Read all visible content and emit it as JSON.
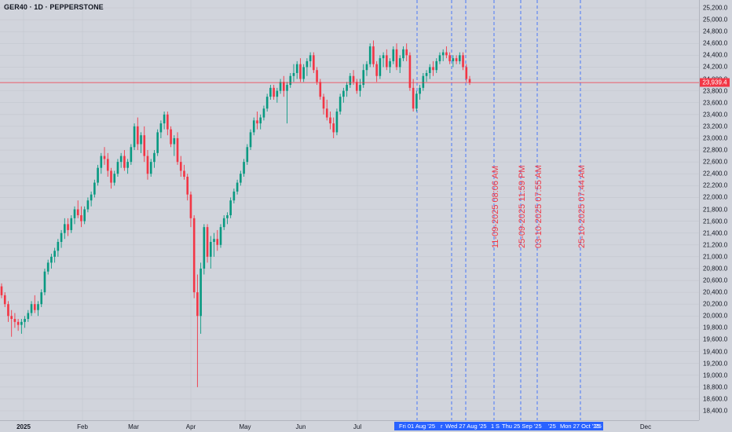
{
  "header": {
    "title": "GER40 · 1D · PEPPERSTONE"
  },
  "price_axis": {
    "labels": [
      "25,200.0",
      "25,000.0",
      "24,800.0",
      "24,600.0",
      "24,400.0",
      "24,200.0",
      "24,000.0",
      "23,800.0",
      "23,600.0",
      "23,400.0",
      "23,200.0",
      "23,000.0",
      "22,800.0",
      "22,600.0",
      "22,400.0",
      "22,200.0",
      "22,000.0",
      "21,800.0",
      "21,600.0",
      "21,400.0",
      "21,200.0",
      "21,000.0",
      "20,800.0",
      "20,600.0",
      "20,400.0",
      "20,200.0",
      "20,000.0",
      "19,800.0",
      "19,600.0",
      "19,400.0",
      "19,200.0",
      "19,000.0",
      "18,800.0",
      "18,600.0",
      "18,400.0"
    ],
    "current_price_label": "23,939.4",
    "current_price": 23939.4
  },
  "time_axis": {
    "labels": [
      "2025",
      "Feb",
      "Mar",
      "Apr",
      "May",
      "Jun",
      "Jul",
      "Dec"
    ],
    "selection_labels": [
      "Fri 01 Aug '25",
      "r",
      "Wed 27 Aug '25",
      "1",
      "S",
      "Thu 25 Sep '25",
      "'25",
      "Mon 27 Oct '25",
      "'25"
    ]
  },
  "vertical_lines": {
    "labels": [
      "11-09-2025 08:06 AM",
      "25-09-2025 11:59 PM",
      "03-10-2025 07:55 AM",
      "25-10-2025 07:44 AM"
    ]
  },
  "colors": {
    "up": "#089981",
    "down": "#f23645",
    "background": "#d1d4dc",
    "grid": "#c3c6ce",
    "vline": "#2962ff",
    "axis_text": "#131722"
  },
  "chart_data": {
    "type": "candlestick",
    "title": "GER40 · 1D · PEPPERSTONE",
    "ylim": [
      18300,
      25300
    ],
    "current_price": 23939.4,
    "ohlc": [
      [
        20500,
        20550,
        20300,
        20350
      ],
      [
        20350,
        20400,
        20150,
        20200
      ],
      [
        20200,
        20250,
        19900,
        20000
      ],
      [
        20000,
        20100,
        19650,
        19950
      ],
      [
        19950,
        20050,
        19800,
        19900
      ],
      [
        19900,
        19950,
        19750,
        19850
      ],
      [
        19850,
        19950,
        19700,
        19900
      ],
      [
        19900,
        20000,
        19800,
        19950
      ],
      [
        19950,
        20100,
        19900,
        20050
      ],
      [
        20050,
        20250,
        20000,
        20200
      ],
      [
        20200,
        20350,
        20050,
        20100
      ],
      [
        20100,
        20250,
        20000,
        20200
      ],
      [
        20200,
        20450,
        20150,
        20400
      ],
      [
        20400,
        20800,
        20350,
        20750
      ],
      [
        20750,
        20950,
        20700,
        20900
      ],
      [
        20900,
        21050,
        20800,
        21000
      ],
      [
        21000,
        21150,
        20900,
        21100
      ],
      [
        21100,
        21300,
        21000,
        21250
      ],
      [
        21250,
        21450,
        21150,
        21400
      ],
      [
        21400,
        21650,
        21300,
        21550
      ],
      [
        21550,
        21650,
        21350,
        21450
      ],
      [
        21450,
        21700,
        21400,
        21650
      ],
      [
        21650,
        21850,
        21550,
        21800
      ],
      [
        21800,
        21950,
        21650,
        21700
      ],
      [
        21700,
        21850,
        21500,
        21600
      ],
      [
        21600,
        21850,
        21550,
        21800
      ],
      [
        21800,
        22000,
        21750,
        21950
      ],
      [
        21950,
        22100,
        21850,
        22050
      ],
      [
        22050,
        22300,
        22000,
        22250
      ],
      [
        22250,
        22550,
        22200,
        22500
      ],
      [
        22500,
        22750,
        22400,
        22700
      ],
      [
        22700,
        22850,
        22550,
        22650
      ],
      [
        22650,
        22750,
        22350,
        22450
      ],
      [
        22450,
        22500,
        22150,
        22250
      ],
      [
        22250,
        22450,
        22200,
        22400
      ],
      [
        22400,
        22650,
        22350,
        22600
      ],
      [
        22600,
        22750,
        22500,
        22700
      ],
      [
        22700,
        22800,
        22450,
        22500
      ],
      [
        22500,
        22650,
        22400,
        22600
      ],
      [
        22600,
        22900,
        22550,
        22850
      ],
      [
        22850,
        23250,
        22800,
        23200
      ],
      [
        23200,
        23350,
        22800,
        22900
      ],
      [
        22900,
        23100,
        22750,
        23050
      ],
      [
        23050,
        23200,
        22600,
        22700
      ],
      [
        22700,
        22800,
        22300,
        22400
      ],
      [
        22400,
        22650,
        22350,
        22600
      ],
      [
        22600,
        22800,
        22500,
        22750
      ],
      [
        22750,
        23150,
        22700,
        23100
      ],
      [
        23100,
        23300,
        23000,
        23250
      ],
      [
        23250,
        23450,
        23150,
        23400
      ],
      [
        23400,
        23450,
        23050,
        23150
      ],
      [
        23150,
        23200,
        22850,
        22900
      ],
      [
        22900,
        23050,
        22700,
        23000
      ],
      [
        23000,
        23100,
        22550,
        22600
      ],
      [
        22600,
        22700,
        22350,
        22450
      ],
      [
        22450,
        22550,
        22300,
        22350
      ],
      [
        22350,
        22400,
        21950,
        22050
      ],
      [
        22050,
        22100,
        21500,
        21650
      ],
      [
        21650,
        21700,
        20300,
        20400
      ],
      [
        20400,
        20700,
        18800,
        20000
      ],
      [
        20000,
        20900,
        19700,
        20800
      ],
      [
        20800,
        21550,
        20700,
        21500
      ],
      [
        21500,
        21550,
        20900,
        21000
      ],
      [
        21000,
        21350,
        20800,
        21250
      ],
      [
        21250,
        21400,
        21000,
        21300
      ],
      [
        21300,
        21450,
        21100,
        21200
      ],
      [
        21200,
        21550,
        21150,
        21500
      ],
      [
        21500,
        21700,
        21450,
        21650
      ],
      [
        21650,
        21750,
        21550,
        21700
      ],
      [
        21700,
        22000,
        21650,
        21950
      ],
      [
        21950,
        22150,
        21900,
        22100
      ],
      [
        22100,
        22300,
        22050,
        22250
      ],
      [
        22250,
        22450,
        22200,
        22400
      ],
      [
        22400,
        22650,
        22350,
        22600
      ],
      [
        22600,
        22900,
        22550,
        22850
      ],
      [
        22850,
        23150,
        22800,
        23100
      ],
      [
        23100,
        23350,
        23050,
        23300
      ],
      [
        23300,
        23450,
        23150,
        23250
      ],
      [
        23250,
        23400,
        23150,
        23350
      ],
      [
        23350,
        23550,
        23300,
        23500
      ],
      [
        23500,
        23750,
        23450,
        23700
      ],
      [
        23700,
        23900,
        23650,
        23850
      ],
      [
        23850,
        23900,
        23650,
        23700
      ],
      [
        23700,
        23850,
        23600,
        23800
      ],
      [
        23800,
        24000,
        23750,
        23950
      ],
      [
        23950,
        24050,
        23700,
        23800
      ],
      [
        23800,
        23950,
        23250,
        23900
      ],
      [
        23900,
        24100,
        23850,
        24050
      ],
      [
        24050,
        24250,
        23950,
        24100
      ],
      [
        24100,
        24300,
        24000,
        24250
      ],
      [
        24250,
        24350,
        23950,
        24000
      ],
      [
        24000,
        24250,
        23950,
        24200
      ],
      [
        24200,
        24350,
        24050,
        24300
      ],
      [
        24300,
        24450,
        24200,
        24400
      ],
      [
        24400,
        24450,
        24100,
        24150
      ],
      [
        24150,
        24200,
        23900,
        23950
      ],
      [
        23950,
        24000,
        23650,
        23700
      ],
      [
        23700,
        23750,
        23400,
        23500
      ],
      [
        23500,
        23650,
        23300,
        23350
      ],
      [
        23350,
        23450,
        23150,
        23250
      ],
      [
        23250,
        23350,
        23000,
        23100
      ],
      [
        23100,
        23500,
        23050,
        23450
      ],
      [
        23450,
        23750,
        23400,
        23700
      ],
      [
        23700,
        23850,
        23600,
        23800
      ],
      [
        23800,
        23950,
        23700,
        23900
      ],
      [
        23900,
        24100,
        23850,
        24050
      ],
      [
        24050,
        24150,
        23900,
        23950
      ],
      [
        23950,
        24000,
        23750,
        23800
      ],
      [
        23800,
        24000,
        23700,
        23900
      ],
      [
        23900,
        24250,
        23850,
        24150
      ],
      [
        24150,
        24300,
        24050,
        24250
      ],
      [
        24250,
        24600,
        24200,
        24550
      ],
      [
        24550,
        24650,
        24200,
        24250
      ],
      [
        24250,
        24300,
        23950,
        24050
      ],
      [
        24050,
        24400,
        24000,
        24350
      ],
      [
        24350,
        24450,
        24200,
        24400
      ],
      [
        24400,
        24500,
        24150,
        24200
      ],
      [
        24200,
        24350,
        24100,
        24300
      ],
      [
        24300,
        24550,
        24250,
        24500
      ],
      [
        24500,
        24600,
        24150,
        24200
      ],
      [
        24200,
        24400,
        24100,
        24350
      ],
      [
        24350,
        24550,
        24300,
        24500
      ],
      [
        24500,
        24600,
        24300,
        24400
      ],
      [
        24400,
        24450,
        23800,
        23850
      ],
      [
        23850,
        24000,
        23450,
        23500
      ],
      [
        23500,
        23800,
        23450,
        23750
      ],
      [
        23750,
        23900,
        23650,
        23850
      ],
      [
        23850,
        24100,
        23800,
        24050
      ],
      [
        24050,
        24150,
        23950,
        24100
      ],
      [
        24100,
        24250,
        24000,
        24200
      ],
      [
        24200,
        24300,
        24050,
        24150
      ],
      [
        24150,
        24350,
        24100,
        24300
      ],
      [
        24300,
        24450,
        24250,
        24400
      ],
      [
        24400,
        24500,
        24300,
        24450
      ],
      [
        24450,
        24550,
        24350,
        24400
      ],
      [
        24400,
        24450,
        24250,
        24300
      ],
      [
        24300,
        24400,
        24200,
        24350
      ],
      [
        24350,
        24400,
        24250,
        24300
      ],
      [
        24300,
        24450,
        24250,
        24400
      ],
      [
        24400,
        24450,
        24150,
        24200
      ],
      [
        24200,
        24250,
        23950,
        24000
      ],
      [
        24000,
        24050,
        23900,
        23939.4
      ]
    ],
    "x_labels": [
      "2025",
      "Feb",
      "Mar",
      "Apr",
      "May",
      "Jun",
      "Jul",
      "Dec"
    ]
  }
}
